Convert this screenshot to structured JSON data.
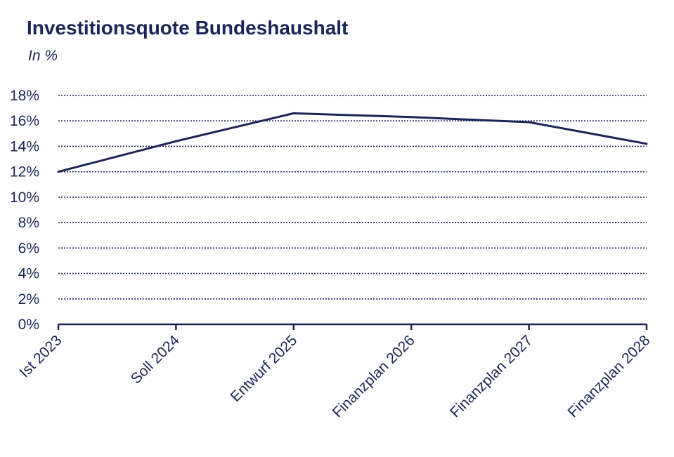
{
  "chart_data": {
    "type": "line",
    "title": "Investitionsquote Bundeshaushalt",
    "subtitle": "In %",
    "xlabel": "",
    "ylabel": "",
    "categories": [
      "Ist 2023",
      "Soll 2024",
      "Entwurf 2025",
      "Finanzplan 2026",
      "Finanzplan 2027",
      "Finanzplan 2028"
    ],
    "series": [
      {
        "values": [
          12.0,
          14.4,
          16.6,
          16.3,
          15.9,
          14.2
        ]
      }
    ],
    "ylim": [
      0,
      18
    ],
    "yticks": [
      "0%",
      "2%",
      "4%",
      "6%",
      "8%",
      "10%",
      "12%",
      "14%",
      "16%",
      "18%"
    ],
    "grid": "dotted horizontal",
    "legend": "none",
    "colors": {
      "line": "#1b2557",
      "text": "#1b2557",
      "grid": "#1b2557"
    }
  }
}
